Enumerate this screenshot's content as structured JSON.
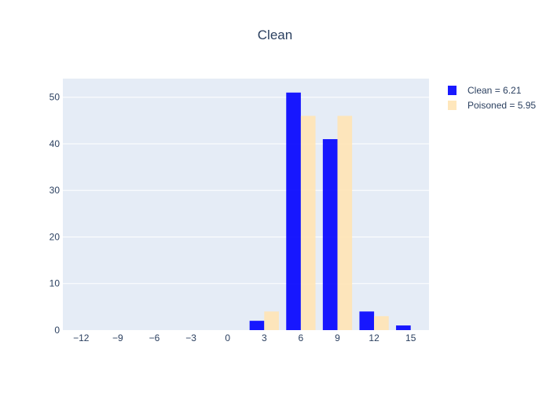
{
  "chart_data": {
    "type": "bar",
    "title": "Clean",
    "xlabel": "",
    "ylabel": "",
    "barmode": "group",
    "categories": [
      -12,
      -9,
      -6,
      -3,
      0,
      3,
      6,
      9,
      12,
      15
    ],
    "x_ticks": [
      "−12",
      "−9",
      "−6",
      "−3",
      "0",
      "3",
      "6",
      "9",
      "12",
      "15"
    ],
    "y_ticks": [
      0,
      10,
      20,
      30,
      40,
      50
    ],
    "ylim": [
      0,
      54
    ],
    "grid": true,
    "legend_position": "top-right",
    "series": [
      {
        "name": "Clean = 6.21",
        "color": "#0000ff",
        "opacity": 0.9,
        "values": [
          0,
          0,
          0,
          0,
          0,
          2,
          51,
          41,
          4,
          1
        ]
      },
      {
        "name": "Poisoned = 5.95",
        "color": "#ffe4b5",
        "opacity": 0.9,
        "values": [
          0,
          0,
          0,
          0,
          0,
          4,
          46,
          46,
          3,
          0
        ]
      }
    ]
  }
}
